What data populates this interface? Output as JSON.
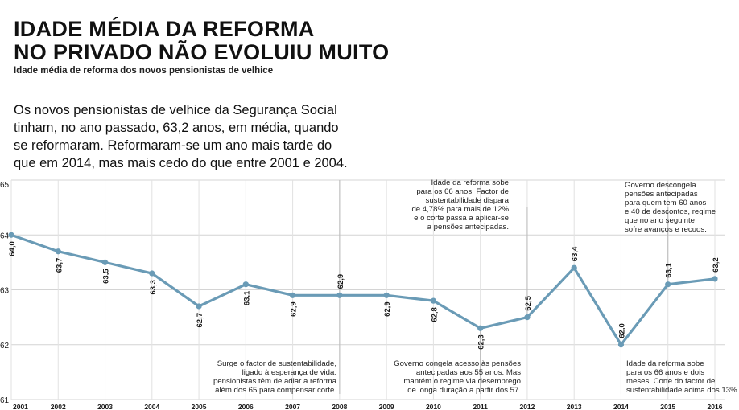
{
  "header": {
    "title_line1": "IDADE MÉDIA DA REFORMA",
    "title_line2": "NO PRIVADO NÃO EVOLUIU MUITO",
    "subtitle": "Idade média de reforma dos novos pensionistas de velhice"
  },
  "lead": {
    "lines": [
      "Os novos pensionistas de velhice da Segurança Social",
      "tinham, no ano passado, 63,2 anos, em média, quando",
      "se reformaram. Reformaram-se um ano mais tarde do",
      "que em 2014, mas mais cedo do que entre 2001 e 2004."
    ]
  },
  "annotations": [
    {
      "id": "ann-2008",
      "lines": [
        "Surge o factor de sustentabilidade,",
        "ligado à esperança de vida:",
        "pensionistas têm de adiar a reforma",
        "além dos 65 para compensar corte."
      ]
    },
    {
      "id": "ann-2011",
      "lines": [
        "Governo congela acesso às pensões",
        "antecipadas aos 55 anos. Mas",
        "mantém o regime via desemprego",
        "de longa duração a partir dos 57."
      ]
    },
    {
      "id": "ann-2012",
      "lines": [
        "Idade da reforma sobe",
        "para os 66 anos. Factor de",
        "sustentabilidade dispara",
        "de 4,78% para mais de 12%",
        "e o corte passa a aplicar-se",
        "a pensões antecipadas."
      ]
    },
    {
      "id": "ann-2014",
      "lines": [
        "Idade da reforma sobe",
        "para os 66 anos e dois",
        "meses. Corte do factor de",
        "sustentabilidade acima dos 13%."
      ]
    },
    {
      "id": "ann-2015",
      "lines": [
        "Governo descongela",
        "pensões antecipadas",
        "para quem tem 60 anos",
        "e 40 de descontos, regime",
        "que no ano seguinte",
        "sofre avanços e recuos."
      ]
    }
  ],
  "chart_data": {
    "type": "line",
    "title": "IDADE MÉDIA DA REFORMA NO PRIVADO NÃO EVOLUIU MUITO",
    "subtitle": "Idade média de reforma dos novos pensionistas de velhice",
    "xlabel": "",
    "ylabel": "",
    "x": [
      "2001",
      "2002",
      "2003",
      "2004",
      "2005",
      "2006",
      "2007",
      "2008",
      "2009",
      "2010",
      "2011",
      "2012",
      "2013",
      "2014",
      "2015",
      "2016"
    ],
    "series": [
      {
        "values": [
          64.0,
          63.7,
          63.5,
          63.3,
          62.7,
          63.1,
          62.9,
          62.9,
          62.9,
          62.8,
          62.3,
          62.5,
          63.4,
          62.0,
          63.1,
          63.2
        ],
        "labels": [
          "64,0",
          "63,7",
          "63,5",
          "63,3",
          "62,7",
          "63,1",
          "62,9",
          "62,9",
          "62,9",
          "62,8",
          "62,3",
          "62,5",
          "63,4",
          "62,0",
          "63,1",
          "63,2"
        ],
        "color": "#6a9bb6"
      }
    ],
    "ylim": [
      61,
      65
    ],
    "yticks": [
      61,
      62,
      63,
      64,
      65
    ],
    "grid": true,
    "legend": "none"
  },
  "colors": {
    "line": "#6a9bb6",
    "grid": "#d4d4d4",
    "text": "#1a1a1a"
  }
}
